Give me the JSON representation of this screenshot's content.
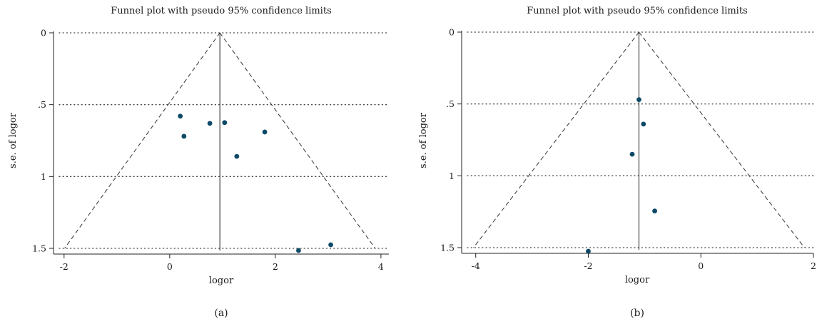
{
  "chart_data": [
    {
      "type": "scatter",
      "panel_label": "(a)",
      "title": "Funnel plot with pseudo 95% confidence limits",
      "xlabel": "logor",
      "ylabel": "s.e. of logor",
      "xlim": [
        -2.2,
        4.15
      ],
      "ylim": [
        0,
        1.52
      ],
      "y_reversed": true,
      "x_ticks": [
        -2,
        0,
        2,
        4
      ],
      "x_tick_labels": [
        "-2",
        "0",
        "2",
        "4"
      ],
      "y_ticks": [
        0,
        0.5,
        1,
        1.5
      ],
      "y_tick_labels": [
        "0",
        ".5",
        "1",
        "1.5"
      ],
      "grid": "y-dotted",
      "pooled_estimate": 0.95,
      "funnel_limits": {
        "se_max": 1.5,
        "z": 1.96
      },
      "marker_color": "#0d4a68",
      "points": [
        {
          "x": 0.2,
          "y": 0.58
        },
        {
          "x": 0.27,
          "y": 0.72
        },
        {
          "x": 0.76,
          "y": 0.63
        },
        {
          "x": 1.04,
          "y": 0.625
        },
        {
          "x": 1.27,
          "y": 0.86
        },
        {
          "x": 1.8,
          "y": 0.69
        },
        {
          "x": 2.44,
          "y": 1.515
        },
        {
          "x": 3.05,
          "y": 1.475
        }
      ]
    },
    {
      "type": "scatter",
      "panel_label": "(b)",
      "title": "Funnel plot with pseudo 95% confidence limits",
      "xlabel": "logor",
      "ylabel": "s.e. of logor",
      "xlim": [
        -4.25,
        2.0
      ],
      "ylim": [
        0,
        1.52
      ],
      "y_reversed": true,
      "x_ticks": [
        -4,
        -2,
        0,
        2
      ],
      "x_tick_labels": [
        "-4",
        "-2",
        "0",
        "2"
      ],
      "y_ticks": [
        0,
        0.5,
        1,
        1.5
      ],
      "y_tick_labels": [
        "0",
        ".5",
        "1",
        "1.5"
      ],
      "grid": "y-dotted",
      "pooled_estimate": -1.1,
      "funnel_limits": {
        "se_max": 1.5,
        "z": 1.96
      },
      "marker_color": "#0d4a68",
      "points": [
        {
          "x": -1.1,
          "y": 0.47
        },
        {
          "x": -1.02,
          "y": 0.64
        },
        {
          "x": -1.22,
          "y": 0.85
        },
        {
          "x": -0.82,
          "y": 1.245
        },
        {
          "x": -2.0,
          "y": 1.525
        }
      ]
    }
  ]
}
